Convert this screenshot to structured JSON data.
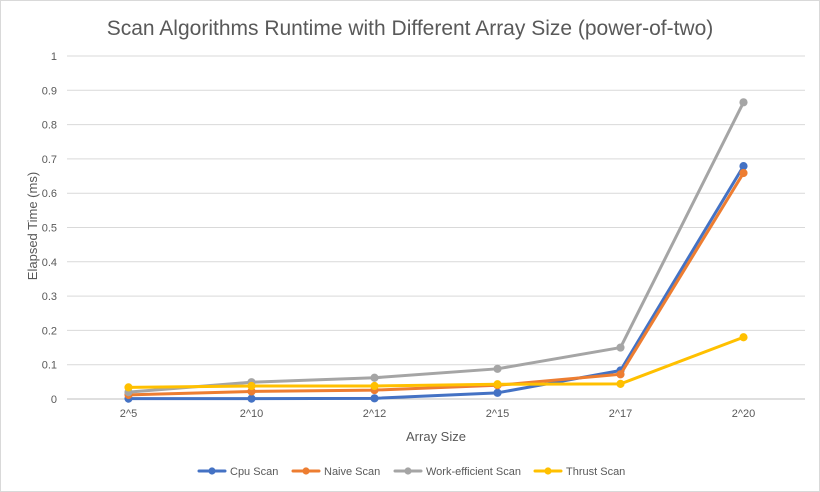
{
  "chart_data": {
    "type": "line",
    "title": "Scan Algorithms Runtime with Different Array Size (power-of-two)",
    "xlabel": "Array Size",
    "ylabel": "Elapsed Time (ms)",
    "categories": [
      "2^5",
      "2^10",
      "2^12",
      "2^15",
      "2^17",
      "2^20"
    ],
    "ylim": [
      0,
      1
    ],
    "yticks": [
      "0",
      "0.1",
      "0.2",
      "0.3",
      "0.4",
      "0.5",
      "0.6",
      "0.7",
      "0.8",
      "0.9",
      "1"
    ],
    "grid": true,
    "legend": "bottom",
    "series": [
      {
        "name": "Cpu Scan",
        "color": "#4472c4",
        "values": [
          0.001,
          0.001,
          0.002,
          0.018,
          0.083,
          0.679
        ]
      },
      {
        "name": "Naive Scan",
        "color": "#ed7d31",
        "values": [
          0.012,
          0.022,
          0.026,
          0.04,
          0.072,
          0.659
        ]
      },
      {
        "name": "Work-efficient Scan",
        "color": "#a5a5a5",
        "values": [
          0.02,
          0.049,
          0.062,
          0.088,
          0.15,
          0.865
        ]
      },
      {
        "name": "Thrust Scan",
        "color": "#ffc000",
        "values": [
          0.034,
          0.038,
          0.038,
          0.043,
          0.044,
          0.18
        ]
      }
    ]
  }
}
